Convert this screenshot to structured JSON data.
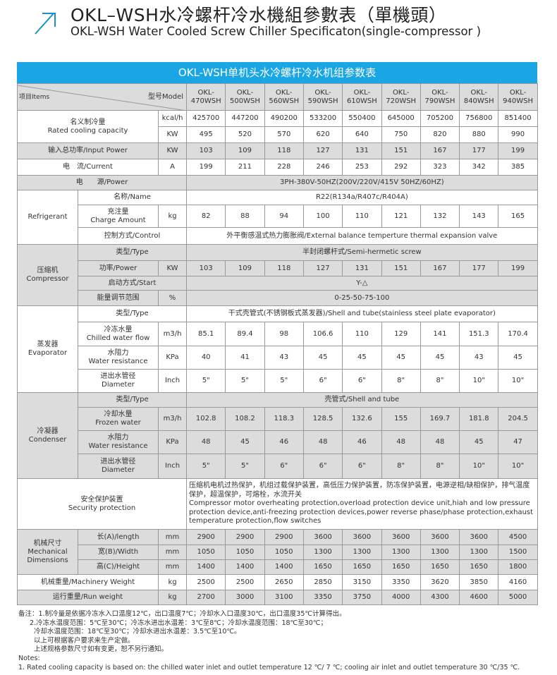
{
  "header": {
    "title_cn": "OKL–WSH水冷螺杆冷水機組參數表（單機頭）",
    "title_en": "OKL-WSH Water Cooled Screw Chiller Specificaton(single-compressor )",
    "icon": "arrow-up-right-icon",
    "accent": "#1aa6e4"
  },
  "table": {
    "title": "OKL-WSH单机头水冷螺杆冷水机组参数表",
    "items_label": "项目Items",
    "model_label": "型号Model",
    "models": [
      "OKL-470WSH",
      "OKL-500WSH",
      "OKL-560WSH",
      "OKL-590WSH",
      "OKL-610WSH",
      "OKL-720WSH",
      "OKL-790WSH",
      "OKL-840WSH",
      "OKL-940WSH"
    ],
    "cooling": {
      "label_cn": "名义制冷量",
      "label_en": "Rated cooling capacity",
      "unit1": "kcal/h",
      "values1": [
        "425700",
        "447200",
        "490200",
        "533200",
        "550400",
        "645000",
        "705200",
        "756800",
        "851400"
      ],
      "unit2": "KW",
      "values2": [
        "495",
        "520",
        "570",
        "620",
        "640",
        "750",
        "820",
        "880",
        "990"
      ]
    },
    "input_power": {
      "label": "输入总功率/Input Power",
      "unit": "KW",
      "values": [
        "103",
        "109",
        "118",
        "127",
        "131",
        "151",
        "167",
        "177",
        "199"
      ]
    },
    "current": {
      "label": "电　流/Current",
      "unit": "A",
      "values": [
        "199",
        "211",
        "228",
        "246",
        "253",
        "292",
        "323",
        "342",
        "385"
      ]
    },
    "power": {
      "label": "电　　源/Power",
      "value": "3PH-380V-50HZ(200V/220V/415V  50HZ/60HZ)"
    },
    "refrigerant": {
      "group": "Refrigerant",
      "name": {
        "label": "名称/Name",
        "value": "R22(R134a/R407c/R404A)"
      },
      "charge": {
        "label_cn": "充注量",
        "label_en": "Charge Amount",
        "unit": "kg",
        "values": [
          "82",
          "88",
          "94",
          "100",
          "110",
          "121",
          "132",
          "143",
          "165"
        ]
      },
      "control": {
        "label": "控制方式/Control",
        "value": "外平衡感温式热力膨胀阀/External balance temperture thermal expansion valve"
      }
    },
    "compressor": {
      "group_cn": "压缩机",
      "group_en": "Compressor",
      "type": {
        "label": "类型/Type",
        "value": "半封闭螺杆式/Semi-hermetic screw"
      },
      "power": {
        "label": "功率/Power",
        "unit": "KW",
        "values": [
          "103",
          "109",
          "118",
          "127",
          "131",
          "151",
          "167",
          "177",
          "199"
        ]
      },
      "start": {
        "label": "启动方式/Start",
        "value": "Y-△"
      },
      "range": {
        "label": "能量调节范围",
        "unit": "%",
        "value": "0-25-50-75-100"
      }
    },
    "evaporator": {
      "group_cn": "蒸发器",
      "group_en": "Evaporator",
      "type": {
        "label": "类型/Type",
        "value": "干式壳管式(不锈钢板式蒸发器)/Shell and tube(stainless steel plate evaporator)"
      },
      "flow": {
        "label_cn": "冷冻水量",
        "label_en": "Chilled water flow",
        "unit": "m3/h",
        "values": [
          "85.1",
          "89.4",
          "98",
          "106.6",
          "110",
          "129",
          "141",
          "151.3",
          "170.4"
        ]
      },
      "resistance": {
        "label_cn": "水阻力",
        "label_en": "Water resistance",
        "unit": "KPa",
        "values": [
          "40",
          "41",
          "43",
          "45",
          "45",
          "45",
          "45",
          "43",
          "45"
        ]
      },
      "diameter": {
        "label_cn": "进出水管径",
        "label_en": "Diameter",
        "unit": "Inch",
        "values": [
          "5\"",
          "5\"",
          "5\"",
          "6\"",
          "6\"",
          "8\"",
          "8\"",
          "10\"",
          "10\""
        ]
      }
    },
    "condenser": {
      "group_cn": "冷凝器",
      "group_en": "Condenser",
      "type": {
        "label": "类型/Type",
        "value": "壳管式/Shell and tube"
      },
      "flow": {
        "label_cn": "冷却水量",
        "label_en": "Frozen water",
        "unit": "m3/h",
        "values": [
          "102.8",
          "108.2",
          "118.3",
          "128.5",
          "132.6",
          "155",
          "169.7",
          "181.8",
          "204.5"
        ]
      },
      "resistance": {
        "label_cn": "水阻力",
        "label_en": "Water resistance",
        "unit": "KPa",
        "values": [
          "48",
          "45",
          "46",
          "48",
          "46",
          "48",
          "48",
          "45",
          "47"
        ]
      },
      "diameter": {
        "label_cn": "进出水管径",
        "label_en": "Diameter",
        "unit": "Inch",
        "values": [
          "5\"",
          "5\"",
          "6\"",
          "6\"",
          "6\"",
          "8\"",
          "8\"",
          "10\"",
          "10\""
        ]
      }
    },
    "security": {
      "label_cn": "安全保护装置",
      "label_en": "Security protection",
      "value_cn": "压缩机电机过热保护，机组过载保护装置，高低压力保护装置，防冻保护装置，电源逆相/缺相保护，排气温度保护，超温保护，可熔栓，水流开关",
      "value_en": "Compressor motor overheating protection,overload protection device unit,hiah and low pressure protection device,anti-freezing protection devices,power reverse phase/phase protection,exhaust temperature protection,flow switches"
    },
    "mechanical": {
      "group_cn": "机械尺寸",
      "group_en": "Mechanical Dimensions",
      "length": {
        "label": "长(A)/length",
        "unit": "mm",
        "values": [
          "2900",
          "2900",
          "2900",
          "3600",
          "3600",
          "3600",
          "3600",
          "3600",
          "4500"
        ]
      },
      "width": {
        "label": "宽(B)/Width",
        "unit": "mm",
        "values": [
          "1050",
          "1050",
          "1050",
          "1300",
          "1300",
          "1300",
          "1300",
          "1300",
          "1500"
        ]
      },
      "height": {
        "label": "高(C)/Height",
        "unit": "mm",
        "values": [
          "1400",
          "1400",
          "1400",
          "1650",
          "1650",
          "1650",
          "1650",
          "1650",
          "1800"
        ]
      }
    },
    "machinery_weight": {
      "label": "机械重量/Machinery Weight",
      "unit": "kg",
      "values": [
        "2500",
        "2500",
        "2650",
        "2850",
        "3150",
        "3350",
        "3620",
        "3850",
        "4160"
      ]
    },
    "run_weight": {
      "label": "运行重量/Run weight",
      "unit": "kg",
      "values": [
        "2700",
        "3000",
        "3100",
        "3350",
        "3750",
        "4000",
        "4300",
        "4600",
        "5000"
      ]
    }
  },
  "notes": {
    "lines_cn": [
      "备注：1.制冷量是依据冷冻水入口温度12℃，出口温度7℃；冷却水入口温度30℃，出口温度35℃计算得出。",
      "2.冷冻水温度范围：5℃至30℃；冷冻水进出水温差：3℃至8℃；冷却水温度范围：18℃至30℃；",
      "冷却水温度范围：18℃至30℃；冷却水进出水温差：3.5℃至10℃。",
      "以上可根据客户要求来生产定做。",
      "上述规格参数尺寸如有变更，恕不另行通知。"
    ],
    "notes_label": "Notes:",
    "line_en": "1. Rated cooling capacity is based on: the chilled water inlet and outlet temperature 12 ℃/ 7 ℃; cooling air inlet and outlet temperature 30 ℃/35 ℃."
  }
}
